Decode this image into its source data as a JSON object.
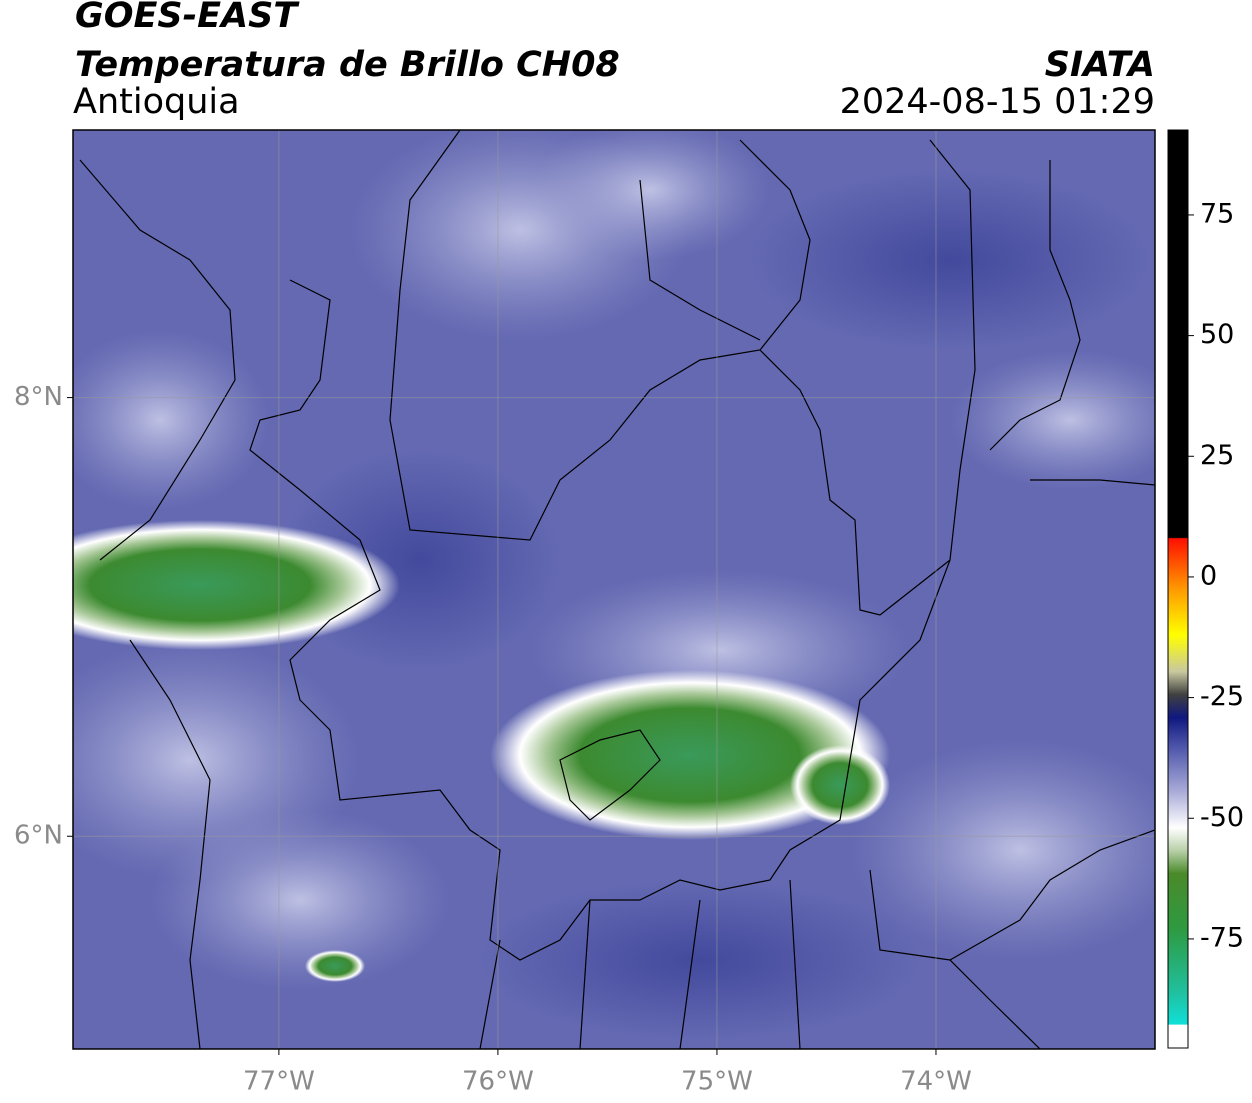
{
  "header": {
    "title": "GOES-EAST",
    "subtitle": "Temperatura de Brillo CH08",
    "region": "Antioquia",
    "source": "SIATA",
    "datetime": "2024-08-15 01:29"
  },
  "map": {
    "xlim": [
      -77.94,
      -73.0
    ],
    "ylim": [
      5.03,
      9.22
    ],
    "xticks": [
      {
        "value": -77,
        "label": "77°W"
      },
      {
        "value": -76,
        "label": "76°W"
      },
      {
        "value": -75,
        "label": "75°W"
      },
      {
        "value": -74,
        "label": "74°W"
      }
    ],
    "yticks": [
      {
        "value": 6,
        "label": "6°N"
      },
      {
        "value": 8,
        "label": "8°N"
      }
    ],
    "grid": true
  },
  "colorbar": {
    "lim": [
      -97.6,
      92.6
    ],
    "ticks": [
      -75,
      -50,
      -25,
      0,
      25,
      50,
      75
    ]
  }
}
